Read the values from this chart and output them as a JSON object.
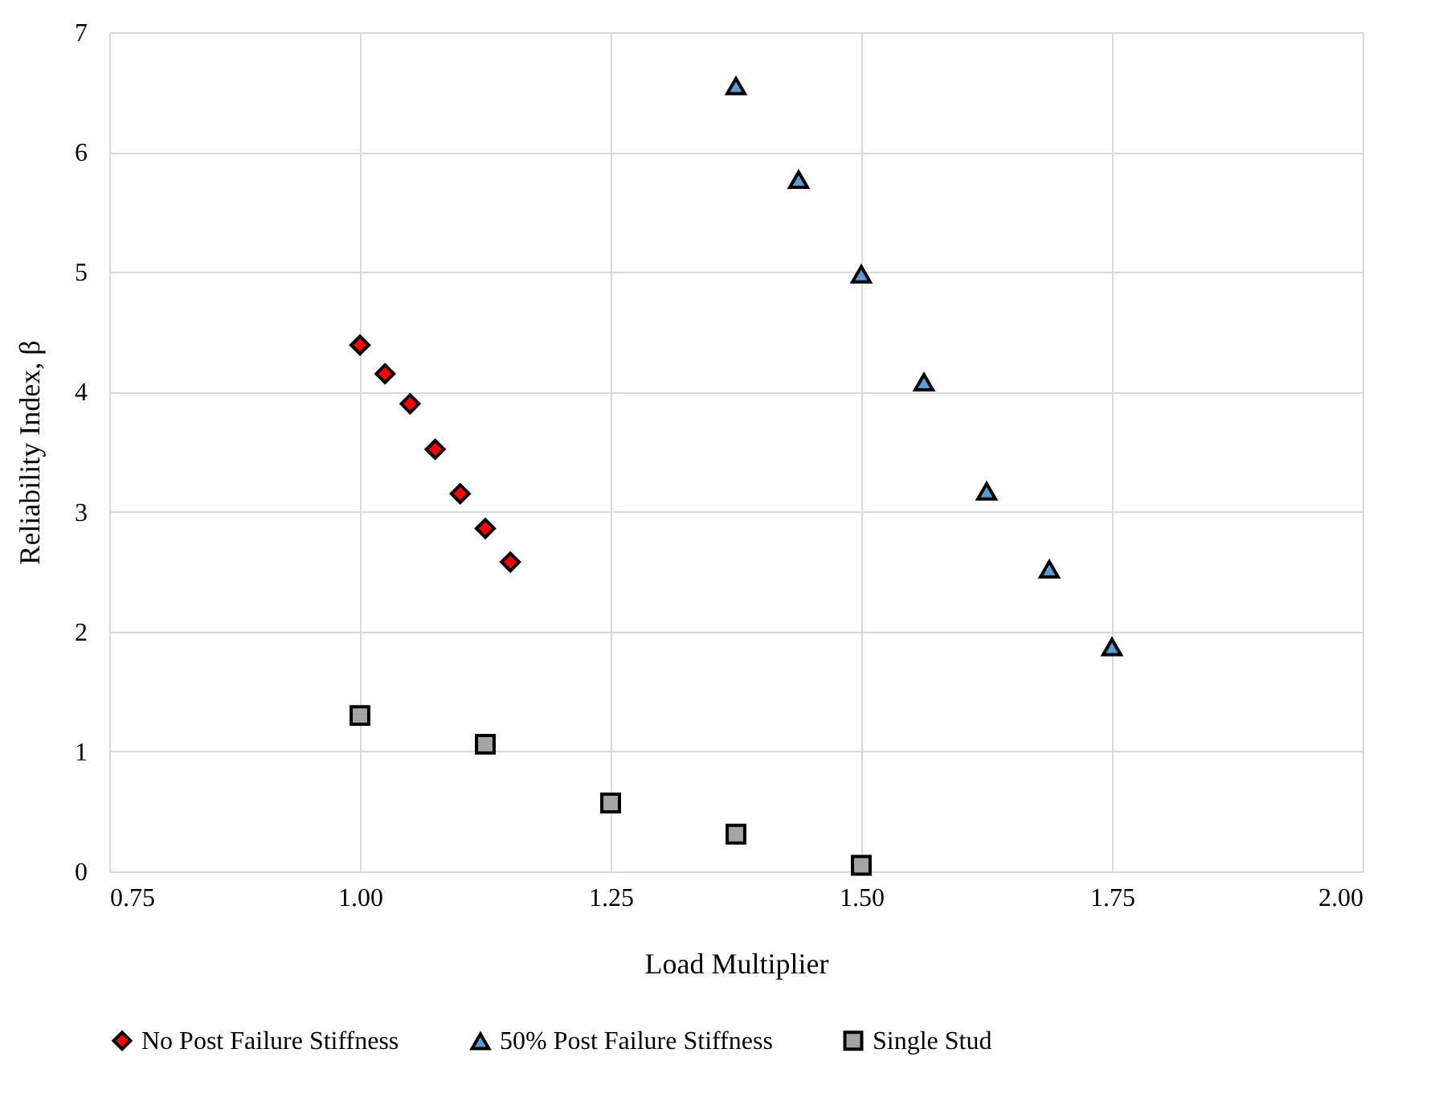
{
  "chart_data": {
    "type": "scatter",
    "xlabel": "Load Multiplier",
    "ylabel": "Reliability Index, β",
    "xlim": [
      0.75,
      2.0
    ],
    "xticks": [
      {
        "value": 0.75,
        "label": "0.75"
      },
      {
        "value": 1.0,
        "label": "1.00"
      },
      {
        "value": 1.25,
        "label": "1.25"
      },
      {
        "value": 1.5,
        "label": "1.50"
      },
      {
        "value": 1.75,
        "label": "1.75"
      },
      {
        "value": 2.0,
        "label": "2.00"
      }
    ],
    "ylim": [
      0,
      7
    ],
    "yticks": [
      0,
      1,
      2,
      3,
      4,
      5,
      6,
      7
    ],
    "grid": true,
    "legend": "bottom",
    "series": [
      {
        "name": "No Post Failure Stiffness",
        "color": "#ff0000",
        "marker": "diamond",
        "x": [
          1.0,
          1.025,
          1.05,
          1.075,
          1.1,
          1.125,
          1.15
        ],
        "values": [
          4.39,
          4.15,
          3.9,
          3.52,
          3.15,
          2.86,
          2.58
        ]
      },
      {
        "name": "50% Post Failure Stiffness",
        "color": "#5b9bd5",
        "marker": "triangle",
        "x": [
          1.375,
          1.4375,
          1.5,
          1.5625,
          1.625,
          1.6875,
          1.75
        ],
        "values": [
          6.55,
          5.77,
          4.98,
          4.08,
          3.17,
          2.52,
          1.87
        ]
      },
      {
        "name": "Single Stud",
        "color": "#a5a5a5",
        "marker": "square",
        "x": [
          1.0,
          1.125,
          1.25,
          1.375,
          1.5
        ],
        "values": [
          1.3,
          1.06,
          0.57,
          0.31,
          0.05
        ]
      }
    ]
  }
}
